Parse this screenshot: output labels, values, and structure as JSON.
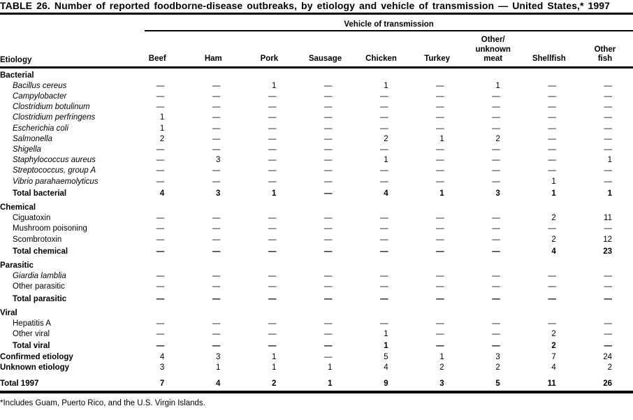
{
  "colors": {
    "text": "#000000",
    "background": "#ffffff",
    "rule": "#000000"
  },
  "title": "TABLE 26. Number of reported foodborne-disease outbreaks, by etiology and vehicle of transmission — United States,* 1997",
  "table": {
    "spanner_label": "Vehicle of transmission",
    "etiology_header": "Etiology",
    "columns": [
      "Beef",
      "Ham",
      "Pork",
      "Sausage",
      "Chicken",
      "Turkey",
      "Other/\nunknown\nmeat",
      "Shellfish",
      "Other\nfish"
    ],
    "rows": [
      {
        "label": "Bacterial",
        "type": "section",
        "italic": false,
        "values": []
      },
      {
        "label": "Bacillus cereus",
        "type": "item",
        "italic": true,
        "values": [
          "—",
          "—",
          "1",
          "—",
          "1",
          "—",
          "1",
          "—",
          "—"
        ]
      },
      {
        "label": "Campylobacter",
        "type": "item",
        "italic": true,
        "values": [
          "—",
          "—",
          "—",
          "—",
          "—",
          "—",
          "—",
          "—",
          "—"
        ]
      },
      {
        "label": "Clostridium botulinum",
        "type": "item",
        "italic": true,
        "values": [
          "—",
          "—",
          "—",
          "—",
          "—",
          "—",
          "—",
          "—",
          "—"
        ]
      },
      {
        "label": "Clostridium perfringens",
        "type": "item",
        "italic": true,
        "values": [
          "1",
          "—",
          "—",
          "—",
          "—",
          "—",
          "—",
          "—",
          "—"
        ]
      },
      {
        "label": "Escherichia coli",
        "type": "item",
        "italic": true,
        "values": [
          "1",
          "—",
          "—",
          "—",
          "—",
          "—",
          "—",
          "—",
          "—"
        ]
      },
      {
        "label": "Salmonella",
        "type": "item",
        "italic": true,
        "values": [
          "2",
          "—",
          "—",
          "—",
          "2",
          "1",
          "2",
          "—",
          "—"
        ]
      },
      {
        "label": "Shigella",
        "type": "item",
        "italic": true,
        "values": [
          "—",
          "—",
          "—",
          "—",
          "—",
          "—",
          "—",
          "—",
          "—"
        ]
      },
      {
        "label": "Staphylococcus aureus",
        "type": "item",
        "italic": true,
        "values": [
          "—",
          "3",
          "—",
          "—",
          "1",
          "—",
          "—",
          "—",
          "1"
        ]
      },
      {
        "label": "Streptococcus, group A",
        "type": "item",
        "italic": true,
        "values": [
          "—",
          "—",
          "—",
          "—",
          "—",
          "—",
          "—",
          "—",
          "—"
        ]
      },
      {
        "label": "Vibrio parahaemolyticus",
        "type": "item",
        "italic": true,
        "values": [
          "—",
          "—",
          "—",
          "—",
          "—",
          "—",
          "—",
          "1",
          "—"
        ]
      },
      {
        "label": "Total bacterial",
        "type": "total",
        "italic": false,
        "values": [
          "4",
          "3",
          "1",
          "—",
          "4",
          "1",
          "3",
          "1",
          "1"
        ]
      },
      {
        "label": "Chemical",
        "type": "section",
        "italic": false,
        "values": []
      },
      {
        "label": "Ciguatoxin",
        "type": "item",
        "italic": false,
        "values": [
          "—",
          "—",
          "—",
          "—",
          "—",
          "—",
          "—",
          "2",
          "11"
        ]
      },
      {
        "label": "Mushroom poisoning",
        "type": "item",
        "italic": false,
        "values": [
          "—",
          "—",
          "—",
          "—",
          "—",
          "—",
          "—",
          "—",
          "—"
        ]
      },
      {
        "label": "Scombrotoxin",
        "type": "item",
        "italic": false,
        "values": [
          "—",
          "—",
          "—",
          "—",
          "—",
          "—",
          "—",
          "2",
          "12"
        ]
      },
      {
        "label": "Total chemical",
        "type": "total",
        "italic": false,
        "values": [
          "—",
          "—",
          "—",
          "—",
          "—",
          "—",
          "—",
          "4",
          "23"
        ]
      },
      {
        "label": "Parasitic",
        "type": "section",
        "italic": false,
        "values": []
      },
      {
        "label": "Giardia lamblia",
        "type": "item",
        "italic": true,
        "values": [
          "—",
          "—",
          "—",
          "—",
          "—",
          "—",
          "—",
          "—",
          "—"
        ]
      },
      {
        "label": "Other parasitic",
        "type": "item",
        "italic": false,
        "values": [
          "—",
          "—",
          "—",
          "—",
          "—",
          "—",
          "—",
          "—",
          "—"
        ]
      },
      {
        "label": "Total parasitic",
        "type": "total",
        "italic": false,
        "values": [
          "—",
          "—",
          "—",
          "—",
          "—",
          "—",
          "—",
          "—",
          "—"
        ]
      },
      {
        "label": "Viral",
        "type": "section",
        "italic": false,
        "values": []
      },
      {
        "label": "Hepatitis A",
        "type": "item",
        "italic": false,
        "values": [
          "—",
          "—",
          "—",
          "—",
          "—",
          "—",
          "—",
          "—",
          "—"
        ]
      },
      {
        "label": "Other viral",
        "type": "item",
        "italic": false,
        "values": [
          "—",
          "—",
          "—",
          "—",
          "1",
          "—",
          "—",
          "2",
          "—"
        ]
      },
      {
        "label": "Total viral",
        "type": "total",
        "italic": false,
        "values": [
          "—",
          "—",
          "—",
          "—",
          "1",
          "—",
          "—",
          "2",
          "—"
        ]
      },
      {
        "label": "Confirmed etiology",
        "type": "summary",
        "italic": false,
        "values": [
          "4",
          "3",
          "1",
          "—",
          "5",
          "1",
          "3",
          "7",
          "24"
        ]
      },
      {
        "label": "Unknown etiology",
        "type": "summary",
        "italic": false,
        "values": [
          "3",
          "1",
          "1",
          "1",
          "4",
          "2",
          "2",
          "4",
          "2"
        ]
      },
      {
        "label": "Total 1997",
        "type": "grand",
        "italic": false,
        "values": [
          "7",
          "4",
          "2",
          "1",
          "9",
          "3",
          "5",
          "11",
          "26"
        ]
      }
    ]
  },
  "footnote": "*Includes Guam, Puerto Rico, and the U.S. Virgin Islands."
}
